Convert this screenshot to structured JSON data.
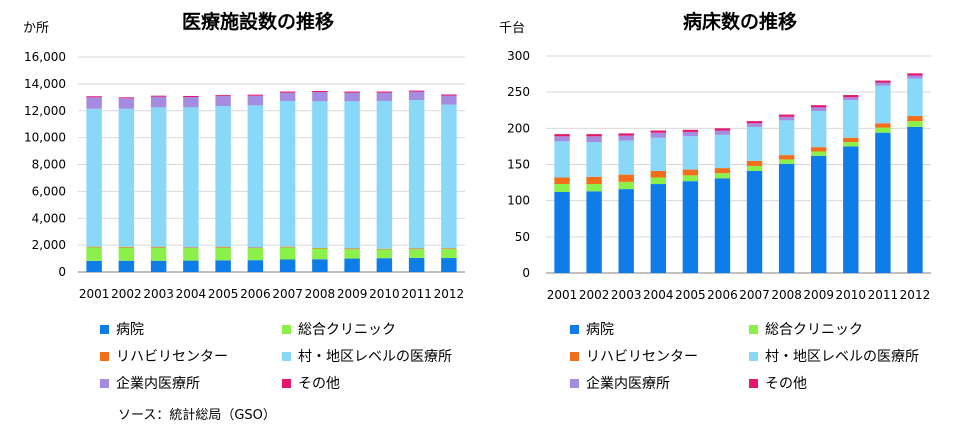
{
  "source_note": "ソース：統計総局（GSO）",
  "colors": {
    "hospital": "#0f7de8",
    "clinic": "#8cf04a",
    "rehab": "#f26e1b",
    "village": "#8ad8f7",
    "company": "#a48de0",
    "other": "#e5176c",
    "grid": "#d9d9d9",
    "axis": "#808080"
  },
  "chart_data": [
    {
      "type": "bar",
      "stacked": true,
      "title": "医療施設数の推移",
      "ylabel": "か所",
      "xlabel": "",
      "ylim": [
        0,
        16000
      ],
      "ytick_step": 2000,
      "yticks": [
        "0",
        "2,000",
        "4,000",
        "6,000",
        "8,000",
        "10,000",
        "12,000",
        "14,000",
        "16,000"
      ],
      "grid": true,
      "legend_position": "bottom",
      "categories": [
        "2001",
        "2002",
        "2003",
        "2004",
        "2005",
        "2006",
        "2007",
        "2008",
        "2009",
        "2010",
        "2011",
        "2012"
      ],
      "series": [
        {
          "name": "病院",
          "key": "hospital",
          "values": [
            830,
            840,
            840,
            850,
            870,
            880,
            930,
            950,
            1000,
            1030,
            1050,
            1040
          ]
        },
        {
          "name": "総合クリニック",
          "key": "clinic",
          "values": [
            1000,
            980,
            970,
            930,
            940,
            890,
            900,
            800,
            700,
            650,
            650,
            670
          ]
        },
        {
          "name": "リハビリセンター",
          "key": "rehab",
          "values": [
            50,
            50,
            50,
            50,
            50,
            50,
            50,
            50,
            50,
            50,
            50,
            50
          ]
        },
        {
          "name": "村・地区レベルの医療所",
          "key": "village",
          "values": [
            10270,
            10280,
            10390,
            10420,
            10490,
            10580,
            10850,
            10900,
            10950,
            11000,
            11050,
            10690
          ]
        },
        {
          "name": "企業内医療所",
          "key": "company",
          "values": [
            850,
            780,
            800,
            770,
            740,
            720,
            620,
            690,
            650,
            620,
            620,
            680
          ]
        },
        {
          "name": "その他",
          "key": "other",
          "values": [
            80,
            70,
            70,
            80,
            70,
            80,
            80,
            80,
            80,
            80,
            80,
            80
          ]
        }
      ]
    },
    {
      "type": "bar",
      "stacked": true,
      "title": "病床数の推移",
      "ylabel": "千台",
      "xlabel": "",
      "ylim": [
        0,
        300
      ],
      "ytick_step": 50,
      "yticks": [
        "0",
        "50",
        "100",
        "150",
        "200",
        "250",
        "300"
      ],
      "grid": true,
      "legend_position": "bottom",
      "categories": [
        "2001",
        "2002",
        "2003",
        "2004",
        "2005",
        "2006",
        "2007",
        "2008",
        "2009",
        "2010",
        "2011",
        "2012"
      ],
      "series": [
        {
          "name": "病院",
          "key": "hospital",
          "values": [
            112,
            113,
            116,
            123,
            127,
            131,
            141,
            151,
            162,
            175,
            194,
            202
          ]
        },
        {
          "name": "総合クリニック",
          "key": "clinic",
          "values": [
            11,
            10,
            10,
            9,
            8,
            7,
            7,
            6,
            6,
            6,
            7,
            8
          ]
        },
        {
          "name": "リハビリセンター",
          "key": "rehab",
          "values": [
            9,
            10,
            10,
            9,
            8,
            7,
            7,
            6,
            6,
            6,
            6,
            7
          ]
        },
        {
          "name": "村・地区レベルの医療所",
          "key": "village",
          "values": [
            50,
            48,
            47,
            46,
            46,
            46,
            47,
            48,
            50,
            52,
            52,
            52
          ]
        },
        {
          "name": "企業内医療所",
          "key": "company",
          "values": [
            7,
            8,
            7,
            7,
            6,
            6,
            5,
            5,
            5,
            4,
            4,
            4
          ]
        },
        {
          "name": "その他",
          "key": "other",
          "values": [
            3,
            3,
            3,
            3,
            3,
            3,
            3,
            3,
            3,
            3,
            3,
            3
          ]
        }
      ]
    }
  ]
}
